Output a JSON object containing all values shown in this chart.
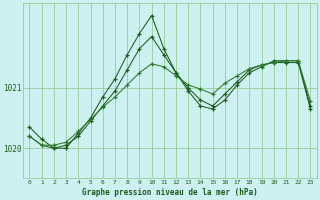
{
  "title": "Graphe pression niveau de la mer (hPa)",
  "background_color": "#cdf0f0",
  "grid_color": "#99cc99",
  "line_color_dark": "#1a5c1a",
  "line_color_mid": "#2d7a2d",
  "x_labels": [
    "0",
    "1",
    "2",
    "3",
    "4",
    "5",
    "6",
    "7",
    "8",
    "9",
    "10",
    "11",
    "12",
    "13",
    "14",
    "15",
    "16",
    "17",
    "18",
    "19",
    "20",
    "21",
    "22",
    "23"
  ],
  "ylim": [
    1019.5,
    1022.4
  ],
  "yticks": [
    1020,
    1021
  ],
  "series1": [
    1020.35,
    1020.15,
    1020.0,
    1020.0,
    1020.25,
    1020.5,
    1020.85,
    1021.15,
    1021.55,
    1021.9,
    1022.2,
    1021.65,
    1021.25,
    1020.95,
    1020.7,
    1020.65,
    1020.8,
    1021.05,
    1021.25,
    1021.35,
    1021.45,
    1021.45,
    1021.45,
    1020.7
  ],
  "series2": [
    1020.2,
    1020.05,
    1020.0,
    1020.05,
    1020.2,
    1020.45,
    1020.7,
    1020.95,
    1021.3,
    1021.65,
    1021.85,
    1021.55,
    1021.25,
    1021.0,
    1020.8,
    1020.7,
    1020.9,
    1021.1,
    1021.3,
    1021.38,
    1021.42,
    1021.42,
    1021.42,
    1020.65
  ],
  "series3": [
    1020.2,
    1020.05,
    1020.05,
    1020.1,
    1020.28,
    1020.48,
    1020.68,
    1020.85,
    1021.05,
    1021.25,
    1021.4,
    1021.35,
    1021.2,
    1021.05,
    1020.98,
    1020.9,
    1021.08,
    1021.2,
    1021.32,
    1021.38,
    1021.42,
    1021.45,
    1021.45,
    1020.78
  ]
}
